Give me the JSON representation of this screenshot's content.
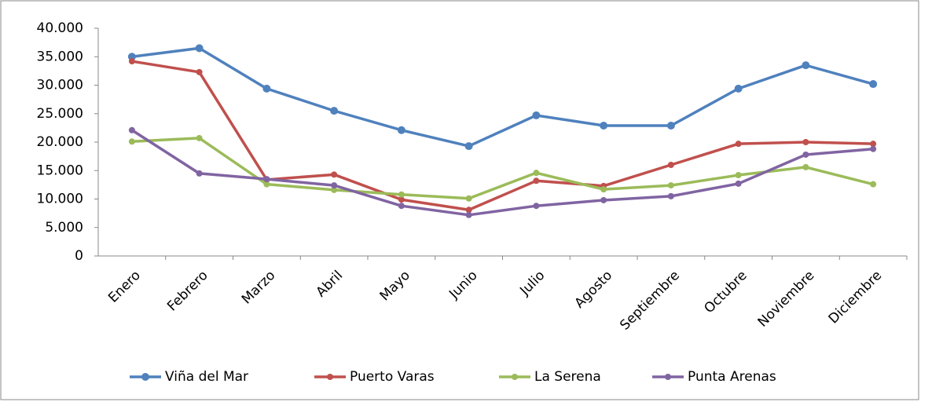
{
  "chart_data": {
    "type": "line",
    "categories": [
      "Enero",
      "Febrero",
      "Marzo",
      "Abril",
      "Mayo",
      "Junio",
      "Julio",
      "Agosto",
      "Septiembre",
      "Octubre",
      "Noviembre",
      "Diciembre"
    ],
    "series": [
      {
        "name": "Viña del Mar",
        "color": "#4f81bd",
        "values": [
          35000,
          36500,
          29400,
          25500,
          22100,
          19300,
          24700,
          22900,
          22900,
          29400,
          33500,
          30200
        ]
      },
      {
        "name": "Puerto Varas",
        "color": "#c0504d",
        "values": [
          34200,
          32300,
          13400,
          14300,
          9900,
          8100,
          13200,
          12300,
          16000,
          19700,
          20000,
          19700
        ]
      },
      {
        "name": "La Serena",
        "color": "#9bbb59",
        "values": [
          20100,
          20700,
          12600,
          11600,
          10800,
          10100,
          14600,
          11700,
          12400,
          14200,
          15600,
          12600
        ]
      },
      {
        "name": "Punta Arenas",
        "color": "#8064a2",
        "values": [
          22100,
          14500,
          13500,
          12400,
          8800,
          7200,
          8800,
          9800,
          10500,
          12700,
          17800,
          18800
        ]
      }
    ],
    "ylim": [
      0,
      40000
    ],
    "yticks": [
      0,
      {
        "value": 5000,
        "label": "5.000"
      },
      {
        "value": 10000,
        "label": "10.000"
      },
      {
        "value": 15000,
        "label": "15.000"
      },
      {
        "value": 20000,
        "label": "20.000"
      },
      {
        "value": 25000,
        "label": "25.000"
      },
      {
        "value": 30000,
        "label": "30.000"
      },
      {
        "value": 35000,
        "label": "35.000"
      },
      {
        "value": 40000,
        "label": "40.000"
      }
    ],
    "grid": false,
    "legend": "bottom"
  }
}
